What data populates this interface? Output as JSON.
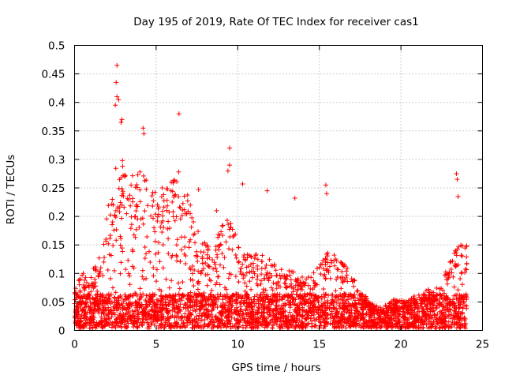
{
  "chart_data": {
    "type": "scatter",
    "title": "Day 195 of 2019, Rate Of TEC Index for receiver cas1",
    "xlabel": "GPS time / hours",
    "ylabel": "ROTI / TECUs",
    "xlim": [
      0,
      25
    ],
    "ylim": [
      0,
      0.5
    ],
    "xticks": [
      0,
      5,
      10,
      15,
      20,
      25
    ],
    "xtick_labels": [
      "0",
      "5",
      "10",
      "15",
      "20",
      "25"
    ],
    "yticks": [
      0,
      0.05,
      0.1,
      0.15,
      0.2,
      0.25,
      0.3,
      0.35,
      0.4,
      0.45,
      0.5
    ],
    "ytick_labels": [
      "0",
      "0.05",
      "0.1",
      "0.15",
      "0.2",
      "0.25",
      "0.3",
      "0.35",
      "0.4",
      "0.45",
      "0.5"
    ],
    "grid": true,
    "marker": "+",
    "marker_color": "#ff0000",
    "envelope": {
      "description": "approximate upper envelope of the dense point cloud (hours, ROTI TECU)",
      "x": [
        0,
        0.5,
        1,
        1.5,
        2,
        2.5,
        3,
        3.5,
        4,
        4.5,
        5,
        5.5,
        6,
        6.5,
        7,
        7.5,
        8,
        8.5,
        9,
        9.5,
        10,
        10.5,
        11,
        11.5,
        12,
        12.5,
        13,
        13.5,
        14,
        14.5,
        15,
        15.5,
        16,
        16.5,
        17,
        17.5,
        18,
        18.5,
        19,
        19.5,
        20,
        20.5,
        21,
        21.5,
        22,
        22.5,
        23,
        23.5,
        24
      ],
      "y": [
        0.07,
        0.1,
        0.1,
        0.12,
        0.2,
        0.28,
        0.3,
        0.26,
        0.27,
        0.26,
        0.24,
        0.25,
        0.26,
        0.27,
        0.22,
        0.17,
        0.15,
        0.14,
        0.18,
        0.2,
        0.15,
        0.13,
        0.13,
        0.13,
        0.12,
        0.11,
        0.1,
        0.1,
        0.09,
        0.09,
        0.12,
        0.13,
        0.13,
        0.12,
        0.09,
        0.07,
        0.05,
        0.04,
        0.04,
        0.05,
        0.05,
        0.05,
        0.06,
        0.07,
        0.07,
        0.08,
        0.12,
        0.15,
        0.15
      ]
    },
    "notable_points": [
      {
        "x": 2.6,
        "y": 0.465
      },
      {
        "x": 2.55,
        "y": 0.435
      },
      {
        "x": 2.6,
        "y": 0.41
      },
      {
        "x": 2.7,
        "y": 0.405
      },
      {
        "x": 2.5,
        "y": 0.395
      },
      {
        "x": 2.9,
        "y": 0.37
      },
      {
        "x": 2.85,
        "y": 0.365
      },
      {
        "x": 4.2,
        "y": 0.355
      },
      {
        "x": 4.25,
        "y": 0.345
      },
      {
        "x": 6.4,
        "y": 0.38
      },
      {
        "x": 9.5,
        "y": 0.32
      },
      {
        "x": 9.5,
        "y": 0.29
      },
      {
        "x": 9.4,
        "y": 0.28
      },
      {
        "x": 10.3,
        "y": 0.257
      },
      {
        "x": 11.8,
        "y": 0.245
      },
      {
        "x": 13.5,
        "y": 0.232
      },
      {
        "x": 15.4,
        "y": 0.255
      },
      {
        "x": 15.45,
        "y": 0.24
      },
      {
        "x": 23.4,
        "y": 0.275
      },
      {
        "x": 23.45,
        "y": 0.265
      },
      {
        "x": 23.5,
        "y": 0.235
      },
      {
        "x": 7.6,
        "y": 0.247
      },
      {
        "x": 8.7,
        "y": 0.21
      }
    ]
  }
}
